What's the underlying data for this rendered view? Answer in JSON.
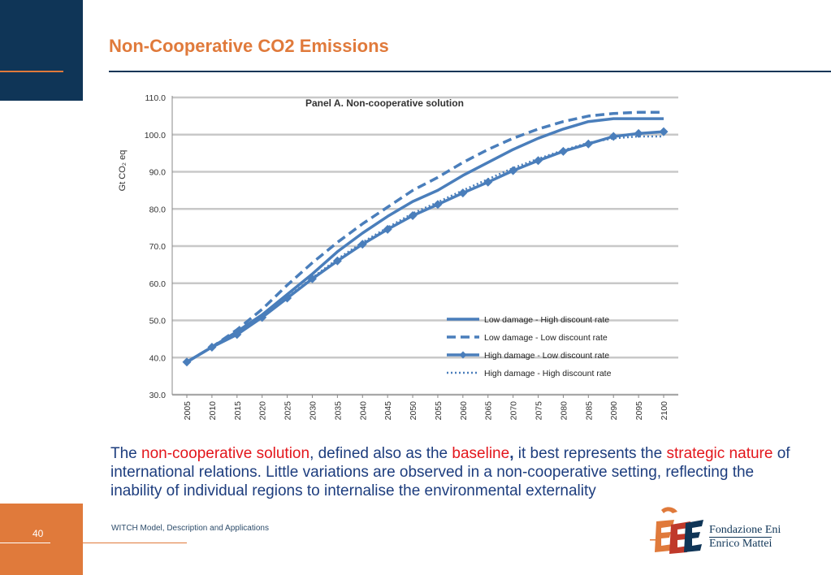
{
  "slide": {
    "title": "Non-Cooperative CO2 Emissions",
    "page_number": "40",
    "footer": "WITCH Model, Description and Applications",
    "colors": {
      "navy": "#0f3557",
      "orange": "#e07a3b",
      "text_blue": "#1d3d7e",
      "highlight_red": "#e3161c",
      "series_blue": "#4a7ebb"
    }
  },
  "body": {
    "t1": "The ",
    "t2": "non-cooperative solution",
    "t3": ", defined also as the ",
    "t4": "baseline",
    "t5": ",",
    "t6": " it best represents the ",
    "t7": "strategic nature",
    "t8": " of international relations. Little variations are observed in a non-cooperative setting, reflecting the inability of individual regions to internalise the environmental externality"
  },
  "logo": {
    "line1": "Fondazione Eni",
    "line2": "Enrico Mattei"
  },
  "chart_data": {
    "type": "line",
    "title": "Panel A. Non-cooperative solution",
    "ylabel": "Gt CO₂ eq",
    "xlabel": "",
    "ylim": [
      30,
      110
    ],
    "yticks": [
      "30.0",
      "40.0",
      "50.0",
      "60.0",
      "70.0",
      "80.0",
      "90.0",
      "100.0",
      "110.0"
    ],
    "grid": true,
    "legend_position": "bottom-right",
    "x": [
      "2005",
      "2010",
      "2015",
      "2020",
      "2025",
      "2030",
      "2035",
      "2040",
      "2045",
      "2050",
      "2055",
      "2060",
      "2065",
      "2070",
      "2075",
      "2080",
      "2085",
      "2090",
      "2095",
      "2100"
    ],
    "series": [
      {
        "name": "Low damage - High discount rate",
        "style": "solid",
        "marker": false,
        "values": [
          38.8,
          42.8,
          47.0,
          51.5,
          57.0,
          62.5,
          68.5,
          73.5,
          78.0,
          82.0,
          85.0,
          89.0,
          92.5,
          96.0,
          99.0,
          101.5,
          103.5,
          104.3,
          104.3,
          104.3
        ]
      },
      {
        "name": "Low damage - Low discount rate",
        "style": "dashed",
        "marker": false,
        "values": [
          38.8,
          42.8,
          47.5,
          53.0,
          59.5,
          65.5,
          71.0,
          76.0,
          80.5,
          85.0,
          88.5,
          92.5,
          96.0,
          99.0,
          101.5,
          103.5,
          105.0,
          105.7,
          106.0,
          106.0
        ]
      },
      {
        "name": "High damage - Low discount rate",
        "style": "solid",
        "marker": true,
        "values": [
          38.8,
          42.8,
          46.2,
          50.8,
          56.0,
          61.2,
          66.0,
          70.5,
          74.5,
          78.2,
          81.2,
          84.3,
          87.2,
          90.3,
          93.0,
          95.5,
          97.5,
          99.5,
          100.3,
          100.8
        ]
      },
      {
        "name": "High damage - High discount rate",
        "style": "dotted",
        "marker": false,
        "values": [
          38.8,
          42.8,
          46.5,
          51.0,
          56.2,
          61.5,
          66.5,
          71.0,
          75.0,
          78.8,
          81.8,
          85.0,
          88.0,
          91.0,
          93.5,
          95.8,
          97.8,
          99.0,
          99.5,
          99.5
        ]
      }
    ]
  }
}
